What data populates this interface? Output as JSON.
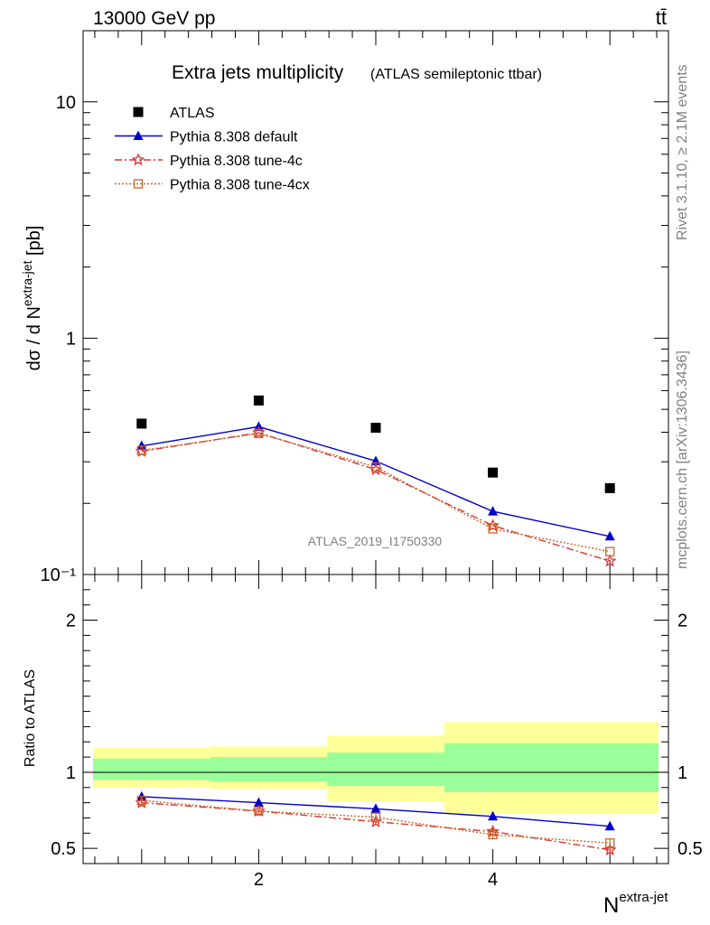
{
  "header": {
    "left": "13000 GeV pp",
    "right": "tt̄"
  },
  "side_labels": {
    "rivet": "Rivet 3.1.10, ≥ 2.1M events",
    "mcplots": "mcplots.cern.ch [arXiv:1306.3436]"
  },
  "chart_data": [
    {
      "type": "scatter",
      "title": "Extra jets multiplicity",
      "subtitle": "(ATLAS semileptonic ttbar)",
      "ylabel": "dσ / d N^extra-jet [pb]",
      "yscale": "log",
      "ylim": [
        0.1,
        20
      ],
      "xlim": [
        0.5,
        5.5
      ],
      "ytick_labels": [
        "10⁻¹",
        "1",
        "10"
      ],
      "watermark": "ATLAS_2019_I1750330",
      "legend_position": "top-left",
      "x": [
        1,
        2,
        3,
        4,
        5
      ],
      "series": [
        {
          "name": "ATLAS",
          "marker": "square",
          "color": "#000000",
          "values": [
            0.435,
            0.545,
            0.418,
            0.27,
            0.232
          ]
        },
        {
          "name": "Pythia 8.308 default",
          "marker": "triangle",
          "line": "solid",
          "color": "#0000cc",
          "values": [
            0.35,
            0.422,
            0.302,
            0.185,
            0.145
          ]
        },
        {
          "name": "Pythia 8.308 tune-4c",
          "marker": "star",
          "line": "dashdot",
          "color": "#dd3333",
          "values": [
            0.332,
            0.398,
            0.278,
            0.161,
            0.114
          ]
        },
        {
          "name": "Pythia 8.308 tune-4cx",
          "marker": "open-square",
          "line": "dotted",
          "color": "#cc6622",
          "values": [
            0.335,
            0.395,
            0.285,
            0.156,
            0.125
          ]
        }
      ]
    },
    {
      "type": "line",
      "ylabel": "Ratio to ATLAS",
      "xlabel": "N^extra-jet",
      "ylim": [
        0.4,
        2.3
      ],
      "xlim": [
        0.5,
        5.5
      ],
      "xtick_labels": [
        "2",
        "4"
      ],
      "ytick_labels": [
        "0.5",
        "1",
        "2"
      ],
      "reference_line": 1,
      "bands": {
        "edges": [
          0.5,
          1.5,
          2.5,
          3.5,
          5.5
        ],
        "green_low": [
          0.95,
          0.94,
          0.91,
          0.87
        ],
        "green_high": [
          1.09,
          1.1,
          1.13,
          1.19
        ],
        "yellow_low": [
          0.9,
          0.89,
          0.81,
          0.73
        ],
        "yellow_high": [
          1.16,
          1.17,
          1.24,
          1.33
        ]
      },
      "x": [
        1,
        2,
        3,
        4,
        5
      ],
      "series": [
        {
          "name": "Pythia 8.308 default",
          "values": [
            0.84,
            0.8,
            0.76,
            0.71,
            0.645
          ],
          "errors": [
            0.015,
            0.015,
            0.02,
            0.025,
            0.025
          ]
        },
        {
          "name": "Pythia 8.308 tune-4c",
          "values": [
            0.8,
            0.745,
            0.675,
            0.61,
            0.49
          ],
          "errors": [
            0.015,
            0.015,
            0.02,
            0.025,
            0.03
          ]
        },
        {
          "name": "Pythia 8.308 tune-4cx",
          "values": [
            0.815,
            0.745,
            0.705,
            0.59,
            0.535
          ],
          "errors": [
            0.015,
            0.015,
            0.02,
            0.025,
            0.025
          ]
        }
      ]
    }
  ]
}
